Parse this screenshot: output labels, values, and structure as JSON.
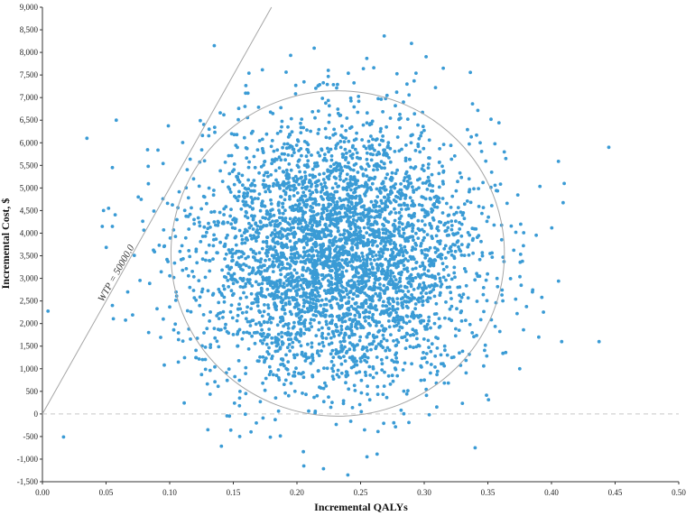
{
  "chart_data": {
    "type": "scatter",
    "title": "",
    "xlabel": "Incremental QALYs",
    "ylabel": "Incremental Cost, $",
    "xlim": [
      0.0,
      0.5
    ],
    "ylim": [
      -1500,
      9000
    ],
    "x_ticks": [
      "0.00",
      "0.05",
      "0.10",
      "0.15",
      "0.20",
      "0.25",
      "0.30",
      "0.35",
      "0.40",
      "0.45",
      "0.50"
    ],
    "x_tick_values": [
      0.0,
      0.05,
      0.1,
      0.15,
      0.2,
      0.25,
      0.3,
      0.35,
      0.4,
      0.45,
      0.5
    ],
    "y_ticks": [
      "-1,500",
      "-1,000",
      "-500",
      "0",
      "500",
      "1,000",
      "1,500",
      "2,000",
      "2,500",
      "3,000",
      "3,500",
      "4,000",
      "4,500",
      "5,000",
      "5,500",
      "6,000",
      "6,500",
      "7,000",
      "7,500",
      "8,000",
      "8,500",
      "9,000"
    ],
    "y_tick_values": [
      -1500,
      -1000,
      -500,
      0,
      500,
      1000,
      1500,
      2000,
      2500,
      3000,
      3500,
      4000,
      4500,
      5000,
      5500,
      6000,
      6500,
      7000,
      7500,
      8000,
      8500,
      9000
    ],
    "wtp_line": {
      "label": "WTP = 50000.0",
      "slope": 50000
    },
    "confidence_ellipse": {
      "center": [
        0.232,
        3550
      ],
      "radius_x": 0.131,
      "radius_y": 3600
    },
    "point_cloud": {
      "n_points": 4000,
      "mean": [
        0.232,
        3550
      ],
      "sd": [
        0.055,
        1450
      ],
      "outliers": [
        [
          0.035,
          6100
        ],
        [
          0.047,
          4150
        ],
        [
          0.048,
          4500
        ],
        [
          0.052,
          4550
        ],
        [
          0.055,
          5450
        ],
        [
          0.058,
          6500
        ],
        [
          0.055,
          4150
        ],
        [
          0.055,
          2400
        ],
        [
          0.067,
          2700
        ],
        [
          0.135,
          8150
        ],
        [
          0.29,
          8200
        ],
        [
          0.315,
          7650
        ],
        [
          0.445,
          5900
        ],
        [
          0.41,
          5100
        ],
        [
          0.408,
          1600
        ],
        [
          0.39,
          1700
        ],
        [
          0.34,
          -750
        ],
        [
          0.24,
          -1350
        ],
        [
          0.255,
          -950
        ],
        [
          0.13,
          -350
        ],
        [
          0.155,
          -500
        ],
        [
          0.095,
          2100
        ],
        [
          0.375,
          1000
        ],
        [
          0.385,
          2700
        ]
      ]
    },
    "zero_line": true,
    "grid": false,
    "legend": "none",
    "colors": {
      "points": "#3a9bd5",
      "ellipse": "#a6a6a6",
      "wtp_line": "#a6a6a6",
      "zero_line": "#c8c8c8"
    }
  }
}
